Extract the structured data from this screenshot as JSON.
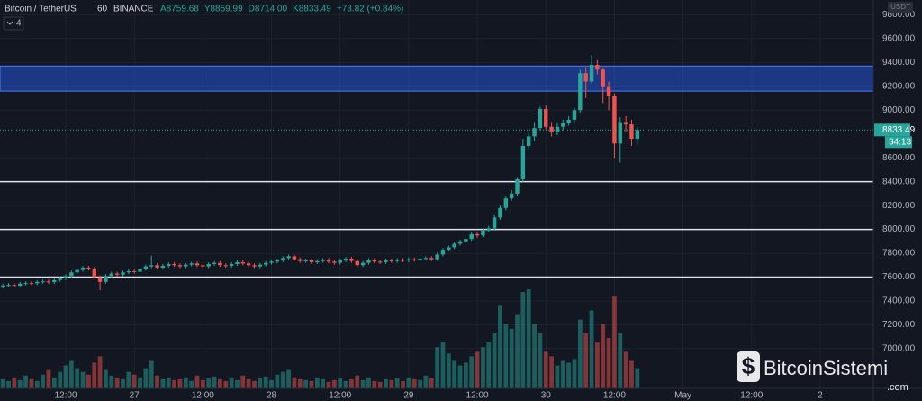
{
  "chart_data": {
    "type": "candlestick",
    "symbol": "Bitcoin / TetherUS",
    "interval": "60",
    "exchange": "BINANCE",
    "ohlc_labels": [
      "A8759.68",
      "Y8859.99",
      "D8714.00",
      "K8833.49"
    ],
    "change": "+73.82 (+0.84%)",
    "indicator_count": "4",
    "currency": "USDT",
    "last_price": {
      "value": 8833.49,
      "label": "8833.49"
    },
    "countdown": "34:13",
    "watermark": "BitcoinSistemi",
    "watermark_suffix": ".com",
    "up_color": "#26a69a",
    "down_color": "#ef5350",
    "open": [
      7520,
      7530,
      7535,
      7528,
      7545,
      7550,
      7548,
      7560,
      7565,
      7558,
      7575,
      7590,
      7610,
      7640,
      7660,
      7680,
      7670,
      7600,
      7560,
      7610,
      7630,
      7620,
      7640,
      7650,
      7645,
      7670,
      7690,
      7700,
      7680,
      7695,
      7710,
      7700,
      7690,
      7705,
      7715,
      7700,
      7690,
      7710,
      7720,
      7700,
      7695,
      7710,
      7725,
      7715,
      7700,
      7690,
      7705,
      7720,
      7730,
      7740,
      7760,
      7775,
      7750,
      7735,
      7740,
      7725,
      7735,
      7745,
      7730,
      7720,
      7740,
      7755,
      7735,
      7700,
      7720,
      7745,
      7730,
      7725,
      7740,
      7735,
      7745,
      7740,
      7750,
      7745,
      7755,
      7760,
      7750,
      7790,
      7830,
      7850,
      7880,
      7900,
      7920,
      7960,
      7950,
      7990,
      8010,
      8100,
      8180,
      8260,
      8300,
      8420,
      8700,
      8780,
      8850,
      9010,
      8860,
      8820,
      8860,
      8890,
      8920,
      9000,
      9310,
      9240,
      9380,
      9340,
      9200,
      9120,
      8720,
      8900,
      8880,
      8759.68
    ],
    "high": [
      7545,
      7550,
      7550,
      7560,
      7565,
      7565,
      7575,
      7580,
      7580,
      7590,
      7605,
      7625,
      7655,
      7675,
      7695,
      7695,
      7685,
      7615,
      7625,
      7645,
      7645,
      7655,
      7665,
      7665,
      7685,
      7705,
      7780,
      7715,
      7710,
      7725,
      7725,
      7715,
      7720,
      7730,
      7730,
      7715,
      7725,
      7735,
      7735,
      7715,
      7725,
      7740,
      7740,
      7730,
      7715,
      7720,
      7735,
      7745,
      7755,
      7775,
      7790,
      7790,
      7765,
      7755,
      7755,
      7750,
      7760,
      7760,
      7745,
      7755,
      7770,
      7770,
      7750,
      7735,
      7760,
      7760,
      7745,
      7755,
      7755,
      7760,
      7760,
      7765,
      7765,
      7770,
      7775,
      7775,
      7805,
      7845,
      7865,
      7895,
      7915,
      7940,
      7980,
      7980,
      8010,
      8030,
      8120,
      8200,
      8280,
      8330,
      8440,
      8760,
      8820,
      8900,
      9030,
      9040,
      8900,
      8890,
      8920,
      8950,
      9020,
      9340,
      9360,
      9460,
      9420,
      9360,
      9240,
      9140,
      8940,
      8950,
      8920,
      8859.99
    ],
    "low": [
      7505,
      7515,
      7513,
      7513,
      7530,
      7533,
      7533,
      7545,
      7543,
      7543,
      7560,
      7575,
      7595,
      7625,
      7645,
      7655,
      7585,
      7490,
      7545,
      7595,
      7605,
      7605,
      7625,
      7630,
      7630,
      7655,
      7675,
      7665,
      7665,
      7680,
      7685,
      7675,
      7675,
      7690,
      7685,
      7675,
      7675,
      7695,
      7685,
      7680,
      7680,
      7695,
      7700,
      7685,
      7675,
      7675,
      7690,
      7705,
      7715,
      7725,
      7745,
      7735,
      7720,
      7720,
      7710,
      7710,
      7720,
      7715,
      7705,
      7705,
      7725,
      7720,
      7685,
      7685,
      7705,
      7715,
      7710,
      7710,
      7720,
      7720,
      7725,
      7725,
      7730,
      7730,
      7740,
      7735,
      7735,
      7775,
      7815,
      7835,
      7865,
      7885,
      7905,
      7930,
      7935,
      7975,
      7990,
      8080,
      8160,
      8240,
      8280,
      8400,
      8660,
      8740,
      8830,
      8840,
      8780,
      8790,
      8830,
      8870,
      8900,
      8980,
      9100,
      9220,
      9300,
      9060,
      9000,
      8600,
      8560,
      8820,
      8700,
      8714
    ],
    "close": [
      7530,
      7535,
      7528,
      7545,
      7550,
      7548,
      7560,
      7565,
      7558,
      7575,
      7590,
      7610,
      7640,
      7660,
      7680,
      7670,
      7600,
      7560,
      7610,
      7630,
      7620,
      7640,
      7650,
      7645,
      7670,
      7690,
      7700,
      7680,
      7695,
      7710,
      7700,
      7690,
      7705,
      7715,
      7700,
      7690,
      7710,
      7720,
      7700,
      7695,
      7710,
      7725,
      7715,
      7700,
      7690,
      7705,
      7720,
      7730,
      7740,
      7760,
      7775,
      7750,
      7735,
      7740,
      7725,
      7735,
      7745,
      7730,
      7720,
      7740,
      7755,
      7735,
      7700,
      7720,
      7745,
      7730,
      7725,
      7740,
      7735,
      7745,
      7740,
      7750,
      7745,
      7755,
      7760,
      7750,
      7790,
      7830,
      7850,
      7880,
      7900,
      7920,
      7960,
      7950,
      7990,
      8010,
      8100,
      8180,
      8260,
      8300,
      8420,
      8700,
      8780,
      8850,
      9010,
      8860,
      8820,
      8860,
      8890,
      8920,
      9000,
      9310,
      9240,
      9380,
      9340,
      9200,
      9120,
      8720,
      8900,
      8880,
      8759.68,
      8833.49
    ],
    "volume": [
      10,
      8,
      12,
      9,
      14,
      10,
      8,
      15,
      20,
      12,
      18,
      25,
      30,
      22,
      18,
      15,
      28,
      35,
      20,
      14,
      12,
      10,
      18,
      15,
      12,
      22,
      30,
      14,
      10,
      12,
      9,
      10,
      12,
      8,
      14,
      9,
      11,
      13,
      10,
      8,
      12,
      9,
      14,
      10,
      8,
      11,
      13,
      9,
      15,
      18,
      20,
      12,
      10,
      9,
      8,
      12,
      10,
      7,
      9,
      11,
      8,
      10,
      14,
      9,
      12,
      8,
      7,
      10,
      9,
      11,
      8,
      12,
      10,
      9,
      14,
      11,
      45,
      50,
      38,
      30,
      25,
      28,
      35,
      40,
      45,
      50,
      60,
      90,
      70,
      65,
      80,
      105,
      108,
      70,
      60,
      40,
      35,
      25,
      30,
      28,
      32,
      75,
      60,
      85,
      50,
      70,
      55,
      100,
      60,
      40,
      30,
      22
    ],
    "xlim": [
      -0.5,
      152.3
    ],
    "xticks": [
      {
        "value": 11,
        "label": "12:00"
      },
      {
        "value": 23,
        "label": "27"
      },
      {
        "value": 35,
        "label": "12:00"
      },
      {
        "value": 47,
        "label": "28"
      },
      {
        "value": 59,
        "label": "12:00"
      },
      {
        "value": 71,
        "label": "29"
      },
      {
        "value": 83,
        "label": "12:00"
      },
      {
        "value": 95,
        "label": "30"
      },
      {
        "value": 107,
        "label": "12:00"
      },
      {
        "value": 119,
        "label": "May"
      },
      {
        "value": 131,
        "label": "12:00"
      },
      {
        "value": 143,
        "label": "2"
      }
    ],
    "ylim": [
      6667,
      9924
    ],
    "yticks": [
      {
        "value": 7000,
        "label": "7000.00"
      },
      {
        "value": 7200,
        "label": "7200.00"
      },
      {
        "value": 7400,
        "label": "7400.00"
      },
      {
        "value": 7600,
        "label": "7600.00"
      },
      {
        "value": 7800,
        "label": "7800.00"
      },
      {
        "value": 8000,
        "label": "8000.00"
      },
      {
        "value": 8200,
        "label": "8200.00"
      },
      {
        "value": 8400,
        "label": "8400.00"
      },
      {
        "value": 8600,
        "label": "8600.00"
      },
      {
        "value": 9000,
        "label": "9000.00"
      },
      {
        "value": 9200,
        "label": "9200.00"
      },
      {
        "value": 9400,
        "label": "9400.00"
      },
      {
        "value": 9600,
        "label": "9600.00"
      },
      {
        "value": 9800,
        "label": "9800.00"
      }
    ],
    "levels": [
      8400,
      8000,
      7600
    ],
    "zone": [
      9160,
      9370
    ],
    "grid": true
  }
}
